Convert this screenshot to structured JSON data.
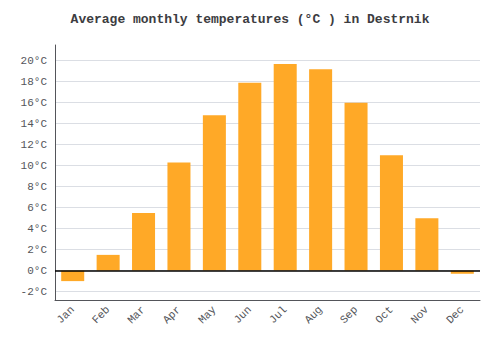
{
  "chart_data": {
    "type": "bar",
    "title": "Average monthly temperatures (°C ) in Destrnik",
    "categories": [
      "Jan",
      "Feb",
      "Mar",
      "Apr",
      "May",
      "Jun",
      "Jul",
      "Aug",
      "Sep",
      "Oct",
      "Nov",
      "Dec"
    ],
    "values": [
      -1.0,
      1.5,
      5.5,
      10.3,
      14.8,
      17.9,
      19.7,
      19.2,
      16.0,
      11.0,
      5.0,
      -0.3
    ],
    "color": "#FFA927",
    "ylim": [
      -2.8,
      21.5
    ],
    "yticks": [
      {
        "value": -2,
        "label": "-2°C"
      },
      {
        "value": 0,
        "label": "0°C"
      },
      {
        "value": 2,
        "label": "2°C"
      },
      {
        "value": 4,
        "label": "4°C"
      },
      {
        "value": 6,
        "label": "6°C"
      },
      {
        "value": 8,
        "label": "8°C"
      },
      {
        "value": 10,
        "label": "10°C"
      },
      {
        "value": 12,
        "label": "12°C"
      },
      {
        "value": 14,
        "label": "14°C"
      },
      {
        "value": 16,
        "label": "16°C"
      },
      {
        "value": 18,
        "label": "18°C"
      },
      {
        "value": 20,
        "label": "20°C"
      }
    ],
    "grid": true
  }
}
